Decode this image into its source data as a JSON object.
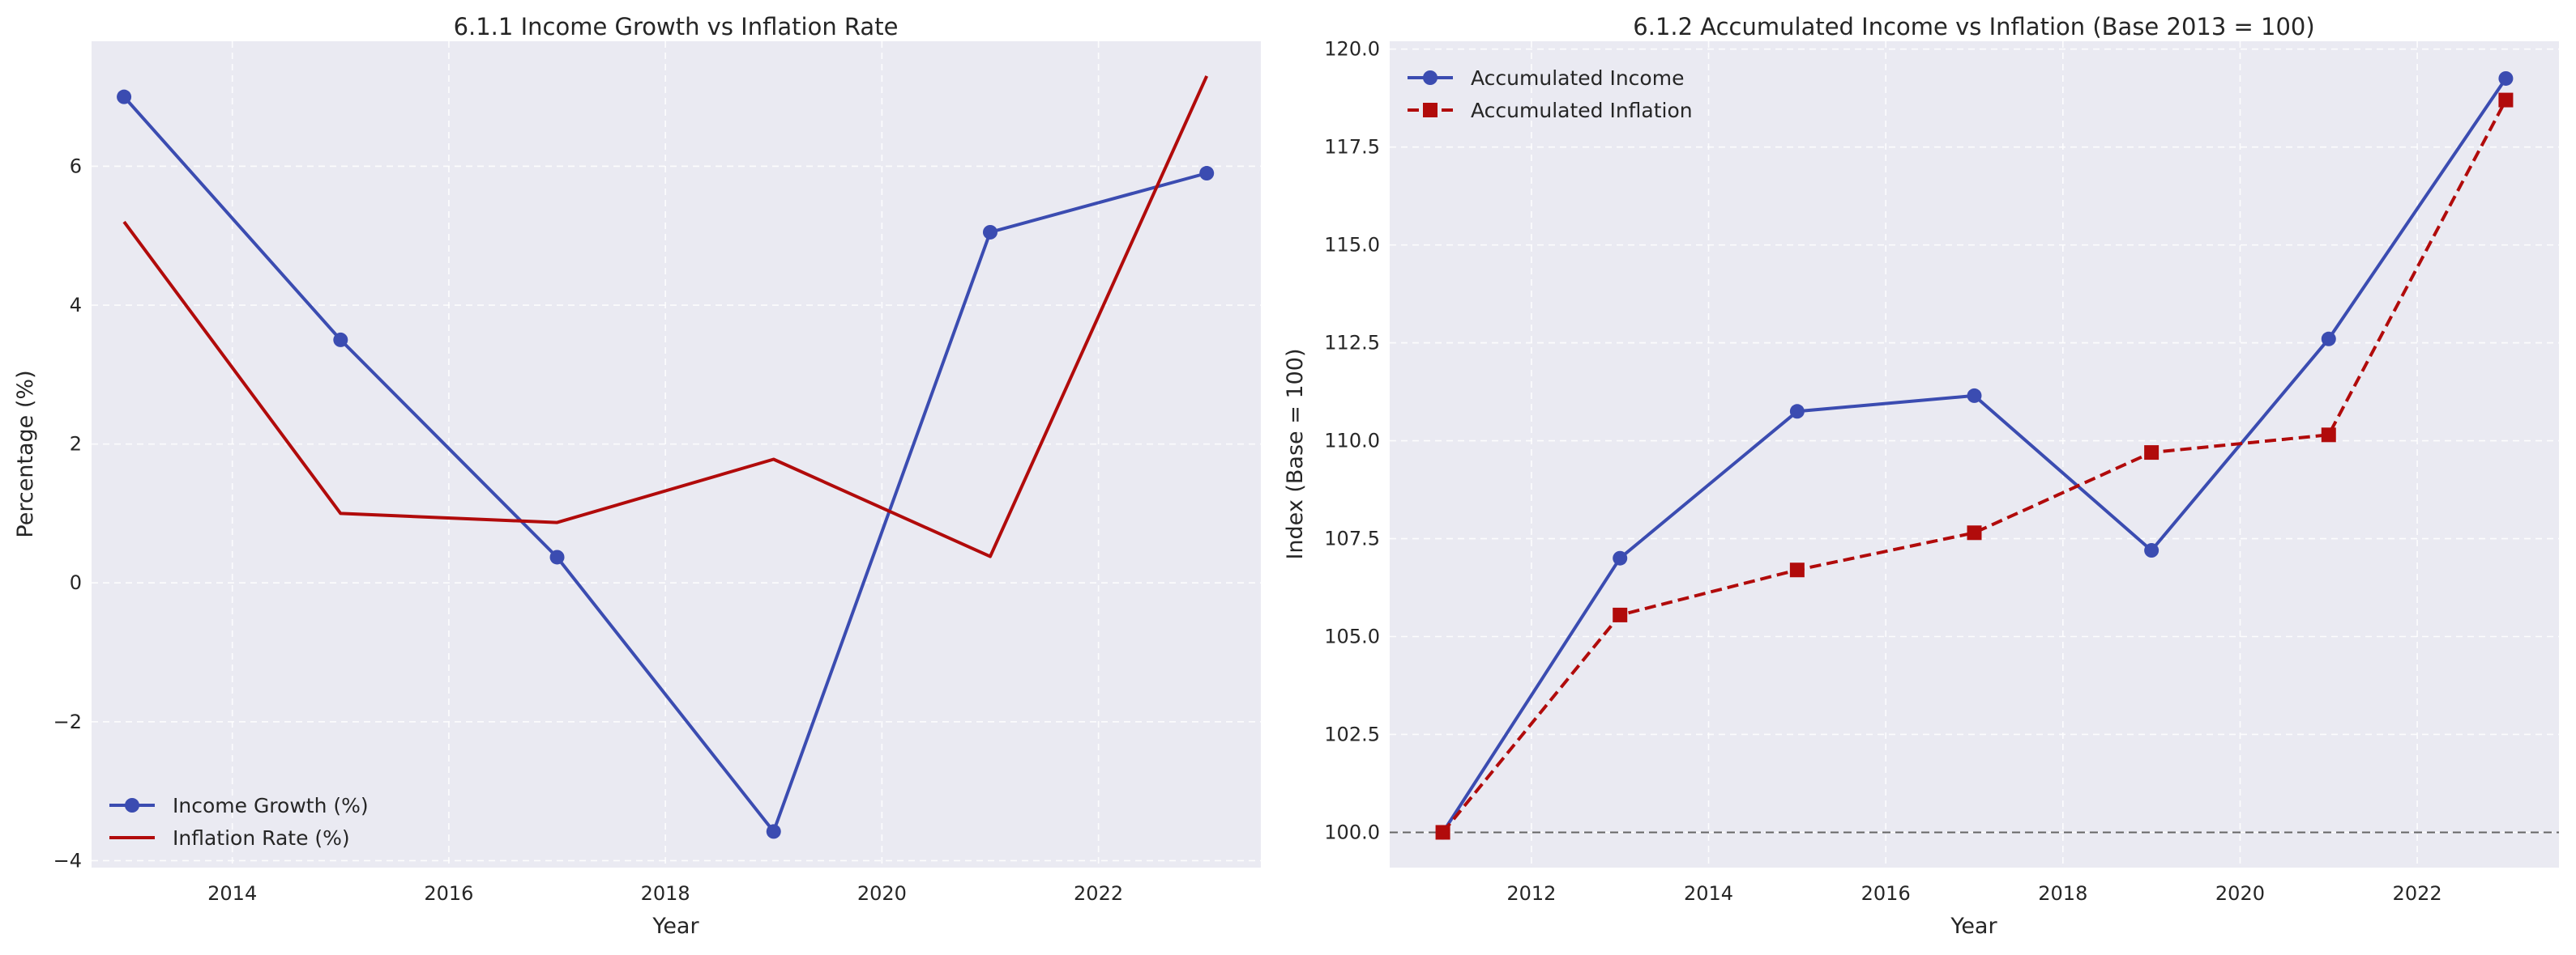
{
  "chart_data": [
    {
      "type": "line",
      "title": "6.1.1 Income Growth vs Inflation Rate",
      "xlabel": "Year",
      "ylabel": "Percentage (%)",
      "xlim": [
        2012.7,
        2023.5
      ],
      "ylim": [
        -4.1,
        7.8
      ],
      "xticks": [
        2014,
        2016,
        2018,
        2020,
        2022
      ],
      "yticks": [
        -4,
        -2,
        0,
        2,
        4,
        6
      ],
      "ytick_labels": [
        "−4",
        "−2",
        "0",
        "2",
        "4",
        "6"
      ],
      "grid": true,
      "legend": "lower-left",
      "series": [
        {
          "name": "Income Growth (%)",
          "color": "#3b4cb1",
          "marker": "circle",
          "line_style": "solid",
          "x": [
            2013,
            2015,
            2017,
            2019,
            2021,
            2023
          ],
          "y": [
            7.0,
            3.5,
            0.37,
            -3.58,
            5.05,
            5.9
          ]
        },
        {
          "name": "Inflation Rate (%)",
          "color": "#b10b0b",
          "marker": "none",
          "line_style": "solid",
          "x": [
            2013,
            2015,
            2017,
            2019,
            2021,
            2023
          ],
          "y": [
            5.2,
            1.0,
            0.87,
            1.78,
            0.38,
            7.3
          ]
        }
      ]
    },
    {
      "type": "line",
      "title": "6.1.2 Accumulated Income vs Inflation (Base 2013 = 100)",
      "xlabel": "Year",
      "ylabel": "Index (Base = 100)",
      "xlim": [
        2010.4,
        2023.6
      ],
      "ylim": [
        99.1,
        120.2
      ],
      "xticks": [
        2012,
        2014,
        2016,
        2018,
        2020,
        2022
      ],
      "yticks": [
        100.0,
        102.5,
        105.0,
        107.5,
        110.0,
        112.5,
        115.0,
        117.5,
        120.0
      ],
      "ytick_labels": [
        "100.0",
        "102.5",
        "105.0",
        "107.5",
        "110.0",
        "112.5",
        "115.0",
        "117.5",
        "120.0"
      ],
      "grid": true,
      "legend": "upper-left",
      "reference_line": {
        "y": 100,
        "style": "dashed",
        "color": "#666666"
      },
      "series": [
        {
          "name": "Accumulated Income",
          "color": "#3b4cb1",
          "marker": "circle",
          "line_style": "solid",
          "x": [
            2011,
            2013,
            2015,
            2017,
            2019,
            2021,
            2023
          ],
          "y": [
            100.0,
            107.0,
            110.75,
            111.15,
            107.2,
            112.6,
            119.25
          ]
        },
        {
          "name": "Accumulated Inflation",
          "color": "#b10b0b",
          "marker": "square",
          "line_style": "dashed",
          "x": [
            2011,
            2013,
            2015,
            2017,
            2019,
            2021,
            2023
          ],
          "y": [
            100.0,
            105.55,
            106.7,
            107.65,
            109.7,
            110.15,
            118.7
          ]
        }
      ]
    }
  ]
}
